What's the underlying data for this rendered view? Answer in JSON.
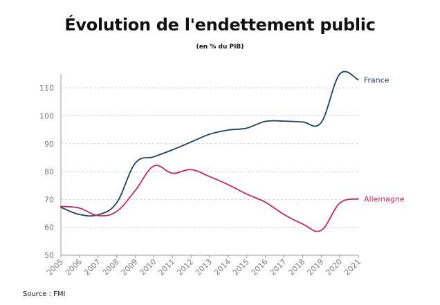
{
  "title": "Évolution de l'endettement public",
  "subtitle": "(en % du PIB)",
  "source": "Source : FMI",
  "colors": {
    "france": "#1d3f5e",
    "allemagne": "#c0285f",
    "grid": "#d0d0d0",
    "axis": "#999999",
    "tick_text": "#7a7a7a"
  },
  "chart_data": {
    "type": "line",
    "title": "Évolution de l'endettement public",
    "subtitle": "(en % du PIB)",
    "xlabel": "",
    "ylabel": "",
    "ylim": [
      50,
      115
    ],
    "yticks": [
      50,
      60,
      70,
      80,
      90,
      100,
      110
    ],
    "x": [
      "2005",
      "2006",
      "2007",
      "2008",
      "2009",
      "2010",
      "2011",
      "2012",
      "2013",
      "2014",
      "2015",
      "2016",
      "2017",
      "2018",
      "2019",
      "2020",
      "2021"
    ],
    "grid": true,
    "series": [
      {
        "name": "France",
        "color": "#1d3f5e",
        "values": [
          67.2,
          64.6,
          64.5,
          68.8,
          83.0,
          85.3,
          87.8,
          90.6,
          93.4,
          94.9,
          95.6,
          98.0,
          98.1,
          97.8,
          97.6,
          115.0,
          112.9
        ]
      },
      {
        "name": "Allemagne",
        "color": "#c0285f",
        "values": [
          67.5,
          66.9,
          64.2,
          65.7,
          73.2,
          82.0,
          79.4,
          80.7,
          78.2,
          75.3,
          71.9,
          69.0,
          64.6,
          61.2,
          58.9,
          68.7,
          70.2
        ]
      }
    ]
  }
}
